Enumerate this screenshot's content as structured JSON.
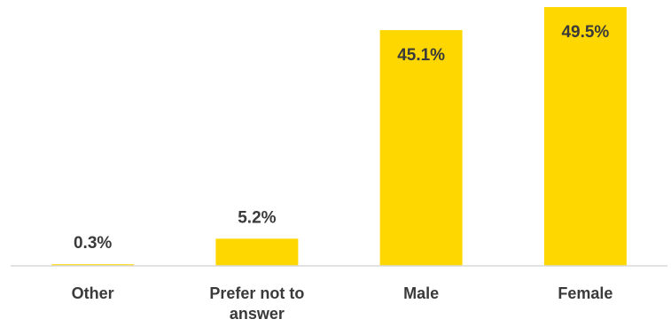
{
  "chart_data": {
    "type": "bar",
    "categories": [
      "Other",
      "Prefer not to answer",
      "Male",
      "Female"
    ],
    "category_label_lines": [
      [
        "Other"
      ],
      [
        "Prefer not to",
        "answer"
      ],
      [
        "Male"
      ],
      [
        "Female"
      ]
    ],
    "values": [
      0.3,
      5.2,
      45.1,
      49.5
    ],
    "data_labels": [
      "0.3%",
      "5.2%",
      "45.1%",
      "49.5%"
    ],
    "title": "",
    "xlabel": "",
    "ylabel": "",
    "ylim": [
      0,
      52
    ],
    "grid": false,
    "legend": "none",
    "bar_color": "#FFD700"
  }
}
